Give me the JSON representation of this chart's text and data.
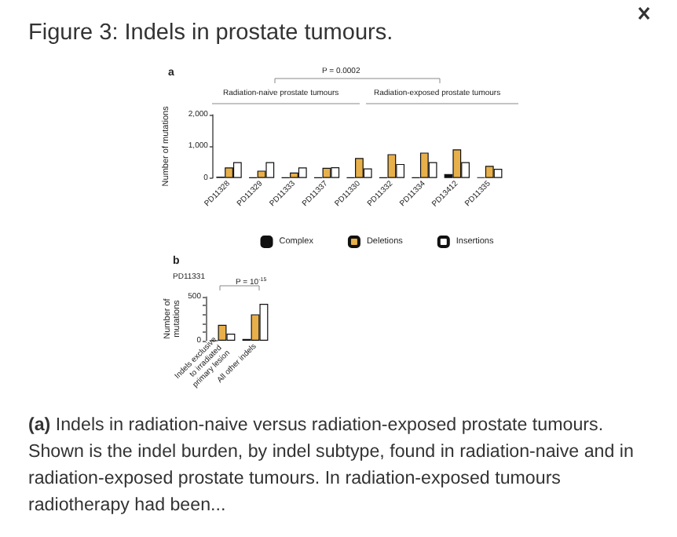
{
  "chart_data": [
    {
      "type": "bar",
      "title": "Figure 3: Indels in prostate tumours.",
      "ylabel": "Number of mutations",
      "categories": [
        "PD11328",
        "PD11329",
        "PD11333",
        "PD11337",
        "PD11330",
        "PD11332",
        "PD11334",
        "PD13412",
        "PD11335"
      ],
      "series": [
        {
          "name": "Complex",
          "color": "#111111",
          "values": [
            40,
            10,
            10,
            10,
            10,
            10,
            10,
            120,
            20
          ]
        },
        {
          "name": "Deletions",
          "color": "#e8b04a",
          "values": [
            330,
            230,
            170,
            320,
            630,
            750,
            800,
            900,
            380
          ]
        },
        {
          "name": "Insertions",
          "color": "#ffffff",
          "values": [
            500,
            500,
            330,
            340,
            300,
            440,
            500,
            500,
            290
          ]
        }
      ],
      "ylim": [
        0,
        2000
      ],
      "yticks": [
        {
          "value": 0,
          "label": "0"
        },
        {
          "value": 1000,
          "label": "1,000"
        },
        {
          "value": 2000,
          "label": "2,000"
        }
      ],
      "legend": "bottom",
      "grid": false,
      "annotations": [
        "a",
        "P = 0.0002",
        "Radiation-naive prostate tumours",
        "Radiation-exposed prostate tumours",
        "(a) Indels in radiation-naive versus radiation-exposed prostate tumours. Shown is the indel burden, by indel subtype, found in radiation-naive and in radiation-exposed prostate tumours. In radiation-exposed tumours radiotherapy had been..."
      ]
    },
    {
      "type": "bar",
      "ylabel": "Number of mutations",
      "categories": [
        "Indels exclusive to irradiated primary lesion",
        "All other indels"
      ],
      "series": [
        {
          "color": "#111111",
          "values": [
            0,
            20
          ]
        },
        {
          "color": "#e8b04a",
          "values": [
            180,
            300
          ]
        },
        {
          "color": "#ffffff",
          "values": [
            80,
            420
          ]
        }
      ],
      "ylim": [
        0,
        500
      ],
      "yticks": [
        {
          "value": 0,
          "label": "0"
        },
        {
          "value": 100,
          "label": null
        },
        {
          "value": 200,
          "label": null
        },
        {
          "value": 300,
          "label": null
        },
        {
          "value": 400,
          "label": null
        },
        {
          "value": 500,
          "label": "500"
        }
      ],
      "legend": false,
      "grid": false,
      "annotations": [
        "b",
        "PD11331",
        "P = 10$^{-15}$"
      ]
    }
  ]
}
